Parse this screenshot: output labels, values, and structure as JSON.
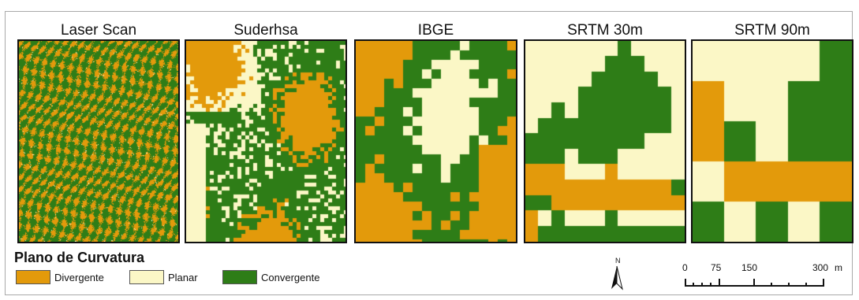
{
  "panels": [
    {
      "title": "Laser Scan",
      "resolution": "laser"
    },
    {
      "title": "Suderhsa",
      "resolution": "fine"
    },
    {
      "title": "IBGE",
      "resolution": "medium"
    },
    {
      "title": "SRTM 30m",
      "resolution": "coarse"
    },
    {
      "title": "SRTM 90m",
      "resolution": "coarsest"
    }
  ],
  "legend": {
    "title": "Plano de Curvatura",
    "items": [
      {
        "label": "Divergente",
        "color": "#e39a0b"
      },
      {
        "label": "Planar",
        "color": "#fbf7c6"
      },
      {
        "label": "Convergente",
        "color": "#2e7d17"
      }
    ]
  },
  "north_arrow": {
    "label": "N"
  },
  "scale_bar": {
    "ticks": [
      "0",
      "75",
      "150",
      "300"
    ],
    "unit": "m"
  },
  "colors": {
    "divergente": "#e39a0b",
    "planar": "#fbf7c6",
    "convergente": "#2e7d17",
    "frame": "#a9a9a9",
    "outline": "#111111"
  }
}
